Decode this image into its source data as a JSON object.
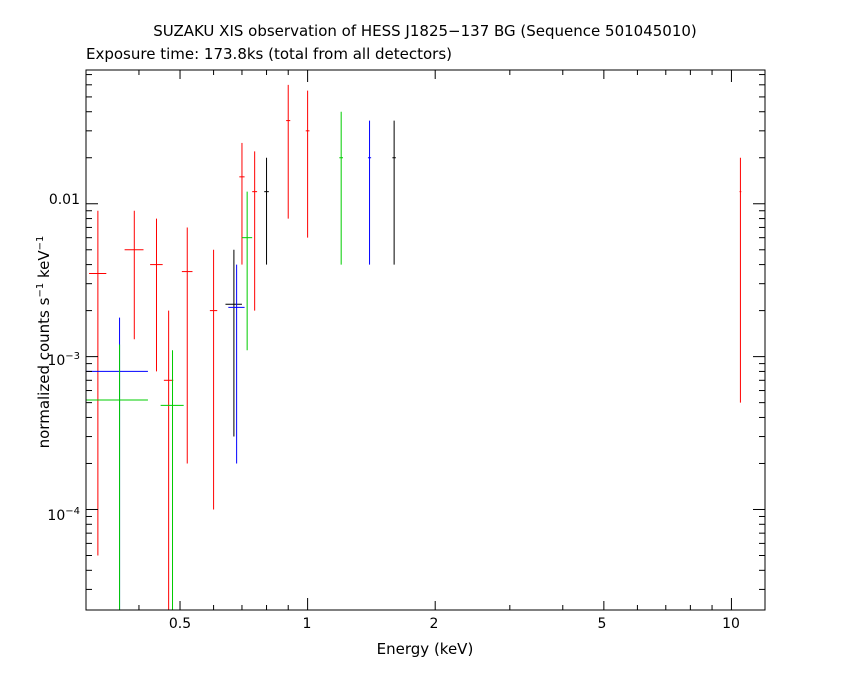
{
  "chart_data": {
    "type": "scatter",
    "title": "SUZAKU XIS observation of HESS J1825−137 BG (Sequence 501045010)",
    "subtitle": "Exposure time: 173.8ks (total from all detectors)",
    "xlabel": "Energy (keV)",
    "ylabel": {
      "base": "normalized counts s",
      "exp1": "−1",
      "mid": " keV",
      "exp2": "−1"
    },
    "x_scale": "log",
    "y_scale": "log",
    "xlim": [
      0.3,
      12
    ],
    "ylim": [
      2.2e-05,
      0.075
    ],
    "x_ticks": [
      {
        "value": 0.5,
        "label": "0.5"
      },
      {
        "value": 1,
        "label": "1"
      },
      {
        "value": 2,
        "label": "2"
      },
      {
        "value": 5,
        "label": "5"
      },
      {
        "value": 10,
        "label": "10"
      }
    ],
    "y_ticks": [
      {
        "value": 0.0001,
        "base": "10",
        "exp": "−4",
        "label": ""
      },
      {
        "value": 0.001,
        "base": "10",
        "exp": "−3",
        "label": ""
      },
      {
        "value": 0.01,
        "base": "",
        "exp": "",
        "label": "0.01"
      }
    ],
    "grid": false,
    "legend": "none",
    "series": [
      {
        "color": "#ff0000",
        "points": [
          {
            "x": 0.32,
            "dx": 0.015,
            "y": 0.0035,
            "ylo": 5e-05,
            "yhi": 0.009
          },
          {
            "x": 0.39,
            "dx": 0.02,
            "y": 0.005,
            "ylo": 0.0013,
            "yhi": 0.009
          },
          {
            "x": 0.44,
            "dx": 0.015,
            "y": 0.004,
            "ylo": 0.0008,
            "yhi": 0.008
          },
          {
            "x": 0.47,
            "dx": 0.012,
            "y": 0.0007,
            "ylo": 2e-05,
            "yhi": 0.002
          },
          {
            "x": 0.52,
            "dx": 0.015,
            "y": 0.0036,
            "ylo": 0.0002,
            "yhi": 0.007
          },
          {
            "x": 0.6,
            "dx": 0.012,
            "y": 0.002,
            "ylo": 0.0001,
            "yhi": 0.005
          },
          {
            "x": 0.7,
            "dx": 0.01,
            "y": 0.015,
            "ylo": 0.004,
            "yhi": 0.025
          },
          {
            "x": 0.75,
            "dx": 0.01,
            "y": 0.012,
            "ylo": 0.002,
            "yhi": 0.022
          },
          {
            "x": 0.9,
            "dx": 0.01,
            "y": 0.035,
            "ylo": 0.008,
            "yhi": 0.06
          },
          {
            "x": 1.0,
            "dx": 0.01,
            "y": 0.03,
            "ylo": 0.006,
            "yhi": 0.055
          },
          {
            "x": 10.5,
            "dx": 0.05,
            "y": 0.012,
            "ylo": 0.0005,
            "yhi": 0.02
          }
        ]
      },
      {
        "color": "#000000",
        "points": [
          {
            "x": 0.67,
            "dx": 0.03,
            "y": 0.0022,
            "ylo": 0.0003,
            "yhi": 0.005
          },
          {
            "x": 0.8,
            "dx": 0.01,
            "y": 0.012,
            "ylo": 0.004,
            "yhi": 0.02
          },
          {
            "x": 1.6,
            "dx": 0.015,
            "y": 0.02,
            "ylo": 0.004,
            "yhi": 0.035
          }
        ]
      },
      {
        "color": "#0000ff",
        "points": [
          {
            "x": 0.36,
            "dx": 0.06,
            "y": 0.0008,
            "ylo": 2e-05,
            "yhi": 0.0018
          },
          {
            "x": 0.68,
            "dx": 0.03,
            "y": 0.0021,
            "ylo": 0.0002,
            "yhi": 0.004
          },
          {
            "x": 1.4,
            "dx": 0.012,
            "y": 0.02,
            "ylo": 0.004,
            "yhi": 0.035
          }
        ]
      },
      {
        "color": "#00cc00",
        "points": [
          {
            "x": 0.36,
            "dx": 0.06,
            "y": 0.00052,
            "ylo": 2e-05,
            "yhi": 0.0012
          },
          {
            "x": 0.48,
            "dx": 0.03,
            "y": 0.00048,
            "ylo": 2e-05,
            "yhi": 0.0011
          },
          {
            "x": 0.72,
            "dx": 0.02,
            "y": 0.006,
            "ylo": 0.0011,
            "yhi": 0.012
          },
          {
            "x": 1.2,
            "dx": 0.012,
            "y": 0.02,
            "ylo": 0.004,
            "yhi": 0.04
          }
        ]
      }
    ]
  }
}
